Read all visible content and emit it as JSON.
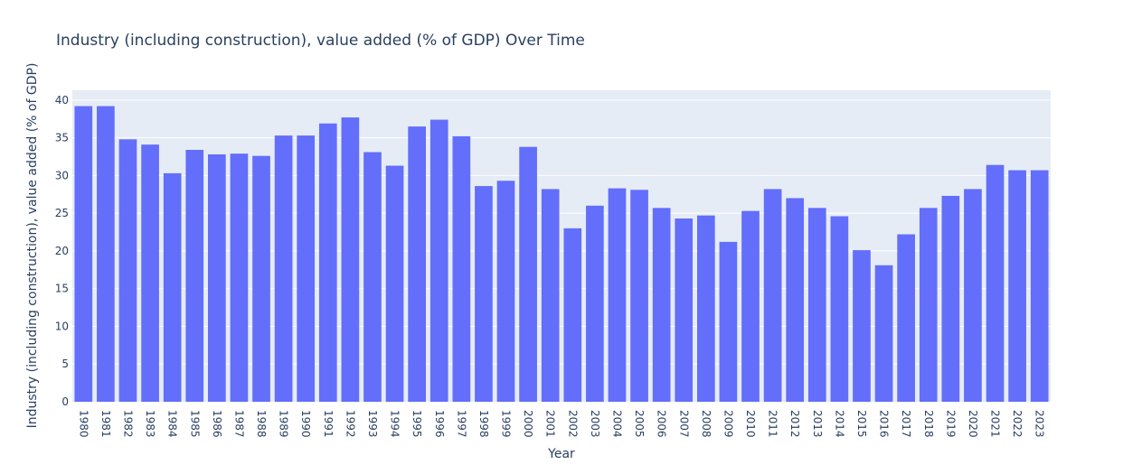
{
  "chart_data": {
    "type": "bar",
    "title": "Industry (including construction), value added (% of GDP) Over Time",
    "xlabel": "Year",
    "ylabel": "Industry (including construction), value added (% of GDP)",
    "categories": [
      "1980",
      "1981",
      "1982",
      "1983",
      "1984",
      "1985",
      "1986",
      "1987",
      "1988",
      "1989",
      "1990",
      "1991",
      "1992",
      "1993",
      "1994",
      "1995",
      "1996",
      "1997",
      "1998",
      "1999",
      "2000",
      "2001",
      "2002",
      "2003",
      "2004",
      "2005",
      "2006",
      "2007",
      "2008",
      "2009",
      "2010",
      "2011",
      "2012",
      "2013",
      "2014",
      "2015",
      "2016",
      "2017",
      "2018",
      "2019",
      "2020",
      "2021",
      "2022",
      "2023"
    ],
    "values": [
      39.2,
      39.2,
      34.8,
      34.1,
      30.3,
      33.4,
      32.8,
      32.9,
      32.6,
      35.3,
      35.3,
      36.9,
      37.7,
      33.1,
      31.3,
      36.5,
      37.4,
      35.2,
      28.6,
      29.3,
      33.8,
      28.2,
      23.0,
      26.0,
      28.3,
      28.1,
      25.7,
      24.3,
      24.7,
      21.2,
      25.3,
      28.2,
      27.0,
      25.7,
      24.6,
      20.1,
      18.1,
      22.2,
      25.7,
      27.3,
      28.2,
      31.4,
      30.7,
      30.7
    ],
    "yticks": [
      "0",
      "5",
      "10",
      "15",
      "20",
      "25",
      "30",
      "35",
      "40"
    ],
    "ylim": [
      0,
      41.3
    ],
    "grid": true,
    "legend": "none",
    "colors": {
      "bar": "#636efa",
      "plot_bg": "#e5ecf6",
      "text": "#2a3f5f"
    }
  }
}
